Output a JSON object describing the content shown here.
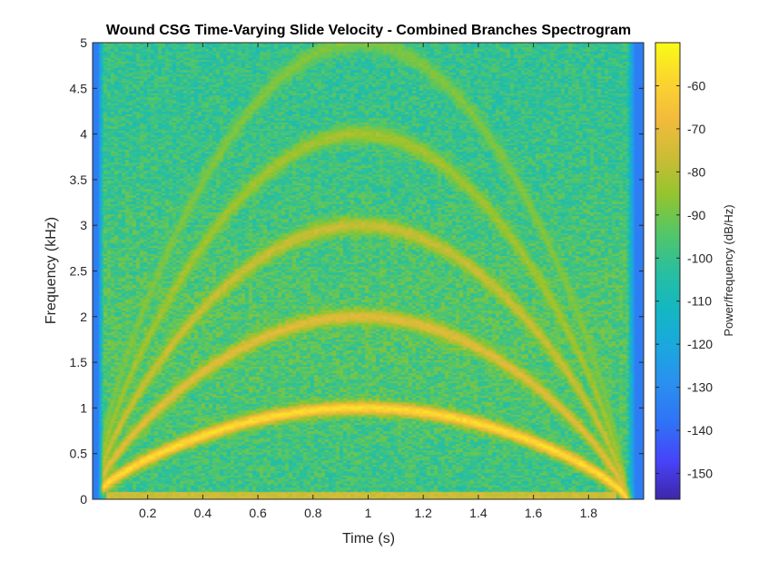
{
  "chart_data": {
    "type": "heatmap",
    "title": "Wound CSG Time-Varying Slide Velocity - Combined Branches Spectrogram",
    "xlabel": "Time (s)",
    "ylabel": "Frequency (kHz)",
    "colorbar_label": "Power/frequency (dB/Hz)",
    "xlim": [
      0,
      2
    ],
    "ylim": [
      0,
      5
    ],
    "clim": [
      -156,
      -50
    ],
    "x_ticks": [
      0.2,
      0.4,
      0.6,
      0.8,
      1,
      1.2,
      1.4,
      1.6,
      1.8
    ],
    "x_tick_labels": [
      "0.2",
      "0.4",
      "0.6",
      "0.8",
      "1",
      "1.2",
      "1.4",
      "1.6",
      "1.8"
    ],
    "y_ticks": [
      0,
      0.5,
      1,
      1.5,
      2,
      2.5,
      3,
      3.5,
      4,
      4.5,
      5
    ],
    "y_tick_labels": [
      "0",
      "0.5",
      "1",
      "1.5",
      "2",
      "2.5",
      "3",
      "3.5",
      "4",
      "4.5",
      "5"
    ],
    "colorbar_ticks": [
      -60,
      -70,
      -80,
      -90,
      -100,
      -110,
      -120,
      -130,
      -140,
      -150
    ],
    "colorbar_tick_labels": [
      "-60",
      "-70",
      "-80",
      "-90",
      "-100",
      "-110",
      "-120",
      "-130",
      "-140",
      "-150"
    ],
    "colormap": "parula",
    "colormap_stops": [
      "#3e26a8",
      "#4743f9",
      "#2f72f6",
      "#2b8ef0",
      "#1ba7df",
      "#14b7c2",
      "#29bf9f",
      "#54c667",
      "#93c52e",
      "#ccbc36",
      "#f3bb3c",
      "#fbd52f",
      "#f9fb15"
    ],
    "harmonics": [
      {
        "name": "fundamental",
        "peak_khz": 1.0,
        "peak_time_s": 0.97,
        "level_db": -57
      },
      {
        "name": "2nd harmonic",
        "peak_khz": 2.0,
        "peak_time_s": 0.97,
        "level_db": -72
      },
      {
        "name": "3rd harmonic",
        "peak_khz": 3.0,
        "peak_time_s": 0.97,
        "level_db": -77
      },
      {
        "name": "4th harmonic",
        "peak_khz": 4.0,
        "peak_time_s": 0.97,
        "level_db": -83
      },
      {
        "name": "5th harmonic",
        "peak_khz": 5.0,
        "peak_time_s": 0.97,
        "level_db": -88
      }
    ],
    "background_db": -101,
    "edge_db": -135,
    "grid": false
  }
}
